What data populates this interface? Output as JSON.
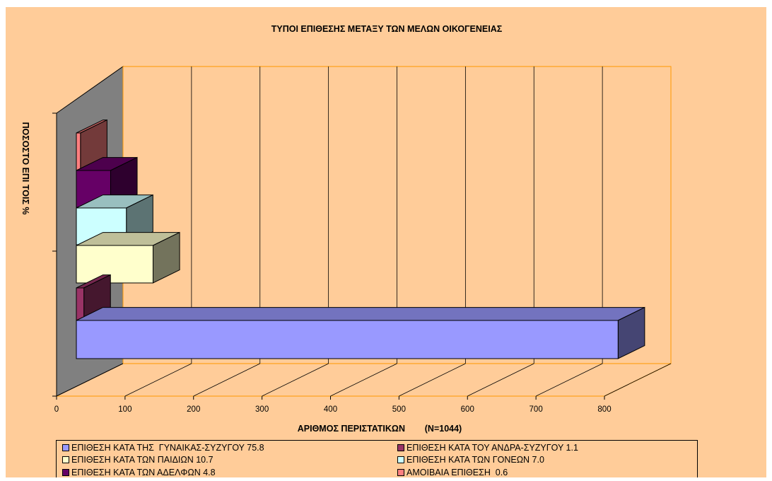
{
  "chart_data": {
    "type": "bar",
    "orientation": "horizontal",
    "style": "3d",
    "title": "ΤΥΠΟΙ ΕΠΙΘΕΣΗΣ ΜΕΤΑΞΥ ΤΩΝ ΜΕΛΩΝ ΟΙΚΟΓΕΝΕΙΑΣ",
    "xlabel": "ΑΡΙΘΜΟΣ ΠΕΡΙΣΤΑΤΙΚΩΝ        (N=1044)",
    "ylabel": "ΠΟΣΟΣΤΟ ΕΠΙ  ΤΟΙΣ %",
    "xlim": [
      0,
      800
    ],
    "xticks": [
      "0",
      "100",
      "200",
      "300",
      "400",
      "500",
      "600",
      "700",
      "800"
    ],
    "grid": true,
    "legend_position": "bottom",
    "series": [
      {
        "name": "ΕΠΙΘΕΣΗ ΚΑΤΑ ΤΗΣ  ΓΥΝΑΙΚΑΣ-ΣΥΖΥΓΟΥ 75.8",
        "value": 791,
        "color": "#9999FF"
      },
      {
        "name": "ΕΠΙΘΕΣΗ ΚΑΤΑ ΤΟΥ ΑΝΔΡΑ-ΣΥΖΥΓΟΥ 1.1",
        "value": 11,
        "color": "#993366"
      },
      {
        "name": "ΕΠΙΘΕΣΗ ΚΑΤΑ ΤΩΝ ΠΑΙΔΙΩΝ 10.7",
        "value": 112,
        "color": "#FFFFCC"
      },
      {
        "name": "ΕΠΙΘΕΣΗ ΚΑΤΑ ΤΩΝ ΓΟΝΕΩΝ 7.0",
        "value": 73,
        "color": "#CCFFFF"
      },
      {
        "name": "ΕΠΙΘΕΣΗ ΚΑΤΑ ΤΩΝ ΑΔΕΛΦΩΝ 4.8",
        "value": 50,
        "color": "#660066"
      },
      {
        "name": "ΑΜΟΙΒΑΙΑ ΕΠΙΘΕΣΗ  0.6",
        "value": 6,
        "color": "#FF8080"
      }
    ]
  },
  "colors": {
    "background": "#FFCC99",
    "gridline": "#000000",
    "plot_frame": "#FF9900",
    "back_wall": "#808080"
  }
}
